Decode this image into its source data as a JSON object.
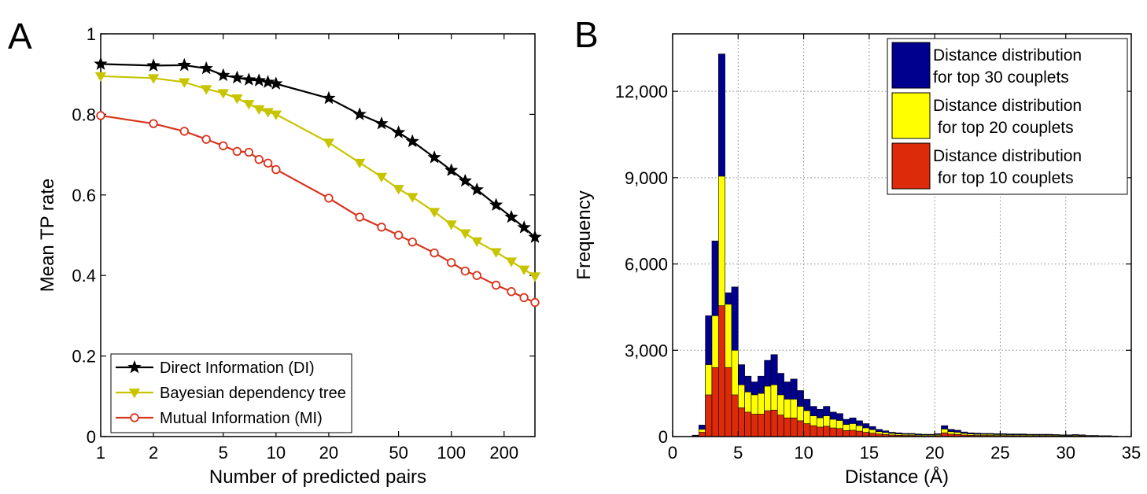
{
  "panels": {
    "a_letter": "A",
    "b_letter": "B"
  },
  "chart_data": [
    {
      "type": "line",
      "xscale": "log",
      "xlabel": "Number of predicted pairs",
      "ylabel": "Mean TP rate",
      "xlim": [
        1,
        300
      ],
      "ylim": [
        0,
        1
      ],
      "x_ticks": [
        1,
        2,
        5,
        10,
        20,
        50,
        100,
        200
      ],
      "x_tick_labels": [
        "1",
        "2",
        "5",
        "10",
        "20",
        "50",
        "100",
        "200"
      ],
      "y_ticks": [
        0,
        0.2,
        0.4,
        0.6,
        0.8,
        1
      ],
      "y_tick_labels": [
        "0",
        "0.2",
        "0.4",
        "0.6",
        "0.8",
        "1"
      ],
      "grid": false,
      "legend": "bottom-left",
      "x": [
        1,
        2,
        3,
        4,
        5,
        6,
        7,
        8,
        9,
        10,
        20,
        30,
        40,
        50,
        60,
        80,
        100,
        120,
        140,
        180,
        220,
        260,
        300
      ],
      "series": [
        {
          "name": "Direct Information (DI)",
          "color": "#000000",
          "marker": "star",
          "values": [
            0.925,
            0.921,
            0.922,
            0.914,
            0.897,
            0.891,
            0.886,
            0.884,
            0.88,
            0.876,
            0.84,
            0.8,
            0.777,
            0.755,
            0.733,
            0.693,
            0.661,
            0.635,
            0.613,
            0.575,
            0.545,
            0.519,
            0.495
          ]
        },
        {
          "name": "Bayesian dependency tree",
          "color": "#c8c400",
          "marker": "triangle-down",
          "values": [
            0.895,
            0.89,
            0.88,
            0.863,
            0.853,
            0.84,
            0.826,
            0.813,
            0.806,
            0.8,
            0.73,
            0.68,
            0.645,
            0.615,
            0.595,
            0.558,
            0.527,
            0.505,
            0.485,
            0.458,
            0.435,
            0.415,
            0.398
          ]
        },
        {
          "name": "Mutual Information (MI)",
          "color": "#d8331c",
          "marker": "circle",
          "values": [
            0.797,
            0.777,
            0.758,
            0.738,
            0.722,
            0.708,
            0.706,
            0.688,
            0.679,
            0.663,
            0.592,
            0.545,
            0.52,
            0.5,
            0.483,
            0.456,
            0.432,
            0.411,
            0.4,
            0.376,
            0.36,
            0.345,
            0.333
          ]
        }
      ]
    },
    {
      "type": "bar",
      "stacked": false,
      "xlabel": "Distance  (Å)",
      "ylabel": "Frequency",
      "xlim": [
        0,
        35
      ],
      "ylim": [
        0,
        14000
      ],
      "x_ticks": [
        0,
        5,
        10,
        15,
        20,
        25,
        30,
        35
      ],
      "x_tick_labels": [
        "0",
        "5",
        "10",
        "15",
        "20",
        "25",
        "30",
        "35"
      ],
      "y_ticks": [
        0,
        3000,
        6000,
        9000,
        12000
      ],
      "y_tick_labels": [
        "0",
        "3,000",
        "6,000",
        "9,000",
        "12,000"
      ],
      "grid": true,
      "legend": "top-right",
      "bin_width": 0.5,
      "bin_starts": [
        1.5,
        2.0,
        2.5,
        3.0,
        3.5,
        4.0,
        4.5,
        5.0,
        5.5,
        6.0,
        6.5,
        7.0,
        7.5,
        8.0,
        8.5,
        9.0,
        9.5,
        10.0,
        10.5,
        11.0,
        11.5,
        12.0,
        12.5,
        13.0,
        13.5,
        14.0,
        14.5,
        15.0,
        15.5,
        16.0,
        16.5,
        17.0,
        17.5,
        18.0,
        18.5,
        19.0,
        19.5,
        20.0,
        20.5,
        21.0,
        21.5,
        22.0,
        22.5,
        23.0,
        23.5,
        24.0,
        24.5,
        25.0,
        25.5,
        26.0,
        26.5,
        27.0,
        27.5,
        28.0,
        28.5,
        29.0,
        29.5,
        30.0,
        30.5,
        31.0,
        31.5,
        32.0,
        32.5,
        33.0,
        33.5
      ],
      "series": [
        {
          "name": "Distance distribution\nfor top 30 couplets",
          "color": "#00008f",
          "values": [
            50,
            400,
            4200,
            6800,
            13300,
            5000,
            5200,
            2500,
            2100,
            1900,
            2100,
            2650,
            2850,
            2200,
            1900,
            2000,
            1600,
            1300,
            1050,
            950,
            1050,
            850,
            800,
            600,
            650,
            550,
            450,
            350,
            250,
            200,
            150,
            130,
            110,
            110,
            90,
            80,
            80,
            100,
            380,
            250,
            220,
            160,
            130,
            120,
            110,
            110,
            100,
            100,
            90,
            90,
            90,
            80,
            80,
            80,
            80,
            70,
            60,
            60,
            70,
            60,
            40,
            40,
            30,
            30,
            20
          ]
        },
        {
          "name": "Distance distribution\n for top 20 couplets",
          "color": "#ffff00",
          "values": [
            30,
            250,
            2500,
            4200,
            9050,
            4600,
            3000,
            1800,
            1550,
            1450,
            1500,
            1750,
            1800,
            1450,
            1300,
            1300,
            1050,
            900,
            720,
            650,
            720,
            600,
            560,
            420,
            450,
            380,
            300,
            240,
            170,
            140,
            110,
            90,
            80,
            80,
            60,
            60,
            60,
            70,
            260,
            170,
            150,
            110,
            90,
            80,
            80,
            80,
            70,
            70,
            60,
            60,
            60,
            60,
            55,
            55,
            55,
            50,
            40,
            40,
            50,
            40,
            30,
            30,
            20,
            20,
            15
          ]
        },
        {
          "name": "Distance distribution\n for top 10 couplets",
          "color": "#dd2a0a",
          "values": [
            20,
            150,
            1450,
            2400,
            4550,
            2400,
            1450,
            1000,
            850,
            780,
            780,
            900,
            920,
            750,
            650,
            650,
            550,
            450,
            380,
            330,
            360,
            300,
            280,
            210,
            220,
            190,
            150,
            120,
            90,
            70,
            55,
            45,
            40,
            40,
            30,
            30,
            30,
            35,
            130,
            85,
            75,
            55,
            45,
            40,
            40,
            40,
            35,
            35,
            30,
            30,
            30,
            30,
            28,
            28,
            28,
            25,
            20,
            20,
            25,
            20,
            15,
            15,
            10,
            10,
            8
          ]
        }
      ]
    }
  ]
}
